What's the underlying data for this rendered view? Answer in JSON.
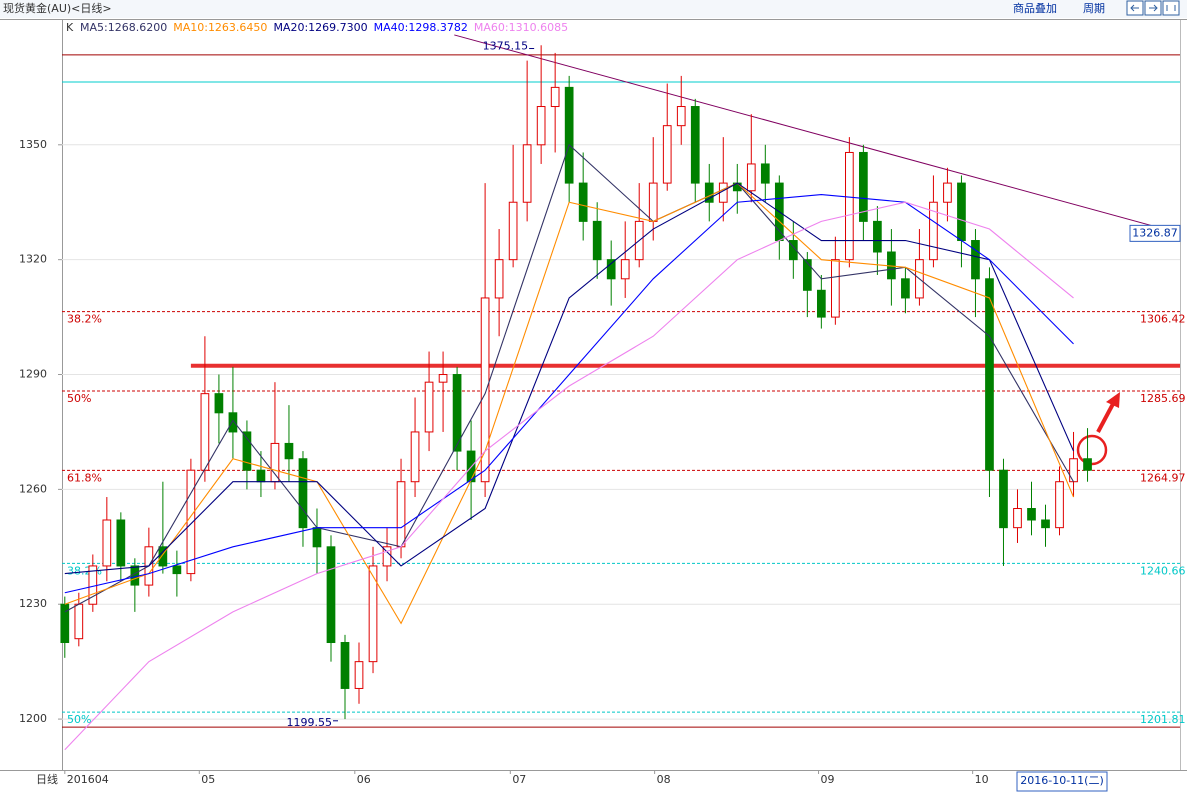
{
  "chart_data": {
    "type": "candlestick",
    "header_title": "现货黄金(AU)<日线>",
    "menu": [
      "商品叠加",
      "周期"
    ],
    "k_label": "K",
    "period_label": "日线",
    "current_date": "2016-10-11(二)",
    "up_color": "#e00000",
    "down_color": "#008000",
    "ylim": [
      1186.7,
      1382.6
    ],
    "yticks": [
      1200,
      1230,
      1260,
      1290,
      1320,
      1350
    ],
    "xlim": [
      -0.2,
      79.6
    ],
    "xticks": [
      {
        "value": 0,
        "label": "201604"
      },
      {
        "value": 9.6,
        "label": "05"
      },
      {
        "value": 20.7,
        "label": "06"
      },
      {
        "value": 31.8,
        "label": "07"
      },
      {
        "value": 42.1,
        "label": "08"
      },
      {
        "value": 53.8,
        "label": "09"
      },
      {
        "value": 64.8,
        "label": "10"
      }
    ],
    "grid": true,
    "candles": [
      [
        1230,
        1232,
        1216,
        1220
      ],
      [
        1221,
        1233,
        1219,
        1230
      ],
      [
        1230,
        1243,
        1228,
        1240
      ],
      [
        1240,
        1258,
        1236,
        1252
      ],
      [
        1252,
        1254,
        1236,
        1240
      ],
      [
        1240,
        1242,
        1228,
        1235
      ],
      [
        1235,
        1250,
        1232,
        1245
      ],
      [
        1245,
        1262,
        1238,
        1240
      ],
      [
        1240,
        1244,
        1232,
        1238
      ],
      [
        1238,
        1268,
        1236,
        1265
      ],
      [
        1265,
        1300,
        1262,
        1285
      ],
      [
        1285,
        1290,
        1272,
        1280
      ],
      [
        1280,
        1292,
        1268,
        1275
      ],
      [
        1275,
        1278,
        1260,
        1265
      ],
      [
        1265,
        1270,
        1258,
        1262
      ],
      [
        1262,
        1288,
        1260,
        1272
      ],
      [
        1272,
        1282,
        1262,
        1268
      ],
      [
        1268,
        1270,
        1245,
        1250
      ],
      [
        1250,
        1255,
        1238,
        1245
      ],
      [
        1245,
        1248,
        1215,
        1220
      ],
      [
        1220,
        1222,
        1200,
        1208
      ],
      [
        1208,
        1220,
        1204,
        1215
      ],
      [
        1215,
        1245,
        1212,
        1240
      ],
      [
        1240,
        1250,
        1236,
        1245
      ],
      [
        1245,
        1268,
        1242,
        1262
      ],
      [
        1262,
        1284,
        1258,
        1275
      ],
      [
        1275,
        1296,
        1270,
        1288
      ],
      [
        1288,
        1296,
        1275,
        1290
      ],
      [
        1290,
        1292,
        1265,
        1270
      ],
      [
        1270,
        1278,
        1252,
        1262
      ],
      [
        1262,
        1340,
        1258,
        1310
      ],
      [
        1310,
        1328,
        1300,
        1320
      ],
      [
        1320,
        1350,
        1318,
        1335
      ],
      [
        1335,
        1372,
        1330,
        1350
      ],
      [
        1350,
        1376,
        1345,
        1360
      ],
      [
        1360,
        1374,
        1348,
        1365
      ],
      [
        1365,
        1368,
        1335,
        1340
      ],
      [
        1340,
        1348,
        1325,
        1330
      ],
      [
        1330,
        1335,
        1315,
        1320
      ],
      [
        1320,
        1325,
        1308,
        1315
      ],
      [
        1315,
        1330,
        1310,
        1320
      ],
      [
        1320,
        1340,
        1318,
        1330
      ],
      [
        1330,
        1352,
        1325,
        1340
      ],
      [
        1340,
        1366,
        1338,
        1355
      ],
      [
        1355,
        1368,
        1350,
        1360
      ],
      [
        1360,
        1362,
        1335,
        1340
      ],
      [
        1340,
        1345,
        1330,
        1335
      ],
      [
        1335,
        1352,
        1330,
        1340
      ],
      [
        1340,
        1345,
        1332,
        1338
      ],
      [
        1338,
        1358,
        1335,
        1345
      ],
      [
        1345,
        1350,
        1335,
        1340
      ],
      [
        1340,
        1342,
        1320,
        1325
      ],
      [
        1325,
        1330,
        1315,
        1320
      ],
      [
        1320,
        1322,
        1305,
        1312
      ],
      [
        1312,
        1316,
        1302,
        1305
      ],
      [
        1305,
        1326,
        1303,
        1320
      ],
      [
        1320,
        1352,
        1318,
        1348
      ],
      [
        1348,
        1350,
        1325,
        1330
      ],
      [
        1330,
        1334,
        1316,
        1322
      ],
      [
        1322,
        1328,
        1308,
        1315
      ],
      [
        1315,
        1318,
        1306,
        1310
      ],
      [
        1310,
        1328,
        1308,
        1320
      ],
      [
        1320,
        1342,
        1318,
        1335
      ],
      [
        1335,
        1344,
        1330,
        1340
      ],
      [
        1340,
        1342,
        1318,
        1325
      ],
      [
        1325,
        1328,
        1305,
        1315
      ],
      [
        1315,
        1318,
        1258,
        1265
      ],
      [
        1265,
        1268,
        1240,
        1250
      ],
      [
        1250,
        1260,
        1246,
        1255
      ],
      [
        1255,
        1262,
        1248,
        1252
      ],
      [
        1252,
        1256,
        1245,
        1250
      ],
      [
        1250,
        1266,
        1248,
        1262
      ],
      [
        1262,
        1275,
        1258,
        1268
      ],
      [
        1268,
        1276,
        1262,
        1265
      ]
    ],
    "lines": [
      {
        "name": "MA5:1268.6200",
        "color": "#333366",
        "x": [
          0,
          6,
          12,
          18,
          24,
          30,
          36,
          42,
          48,
          54,
          60,
          66,
          72
        ],
        "values": [
          1228,
          1240,
          1278,
          1250,
          1245,
          1285,
          1350,
          1330,
          1340,
          1315,
          1318,
          1300,
          1262
        ]
      },
      {
        "name": "MA10:1263.6450",
        "color": "#ff8c00",
        "x": [
          0,
          6,
          12,
          18,
          24,
          30,
          36,
          42,
          48,
          54,
          60,
          66,
          72
        ],
        "values": [
          1230,
          1238,
          1268,
          1262,
          1225,
          1270,
          1335,
          1330,
          1340,
          1320,
          1318,
          1310,
          1258
        ]
      },
      {
        "name": "MA20:1269.7300",
        "color": "#000080",
        "x": [
          0,
          6,
          12,
          18,
          24,
          30,
          36,
          42,
          48,
          54,
          60,
          66,
          72
        ],
        "values": [
          1238,
          1240,
          1262,
          1262,
          1240,
          1255,
          1310,
          1328,
          1340,
          1325,
          1325,
          1320,
          1270
        ]
      },
      {
        "name": "MA40:1298.3782",
        "color": "#0000ff",
        "x": [
          0,
          6,
          12,
          18,
          24,
          30,
          36,
          42,
          48,
          54,
          60,
          66,
          72
        ],
        "values": [
          1233,
          1238,
          1245,
          1250,
          1250,
          1265,
          1290,
          1315,
          1335,
          1337,
          1335,
          1320,
          1298
        ]
      },
      {
        "name": "MA60:1310.6085",
        "color": "#ee82ee",
        "x": [
          0,
          6,
          12,
          18,
          24,
          30,
          36,
          42,
          48,
          54,
          60,
          66,
          72
        ],
        "values": [
          1192,
          1215,
          1228,
          1238,
          1245,
          1270,
          1287,
          1300,
          1320,
          1330,
          1335,
          1328,
          1310
        ]
      }
    ],
    "levels": [
      {
        "value": 1373.5,
        "color": "#a00000",
        "width": 1
      },
      {
        "value": 1366.4,
        "color": "#00cccc",
        "width": 1
      },
      {
        "value": 1292.3,
        "color": "#e83030",
        "width": 4
      },
      {
        "value": 1197.9,
        "color": "#a00000",
        "width": 1
      }
    ],
    "fib_levels": [
      {
        "value": 1306.42,
        "label": "38.2%",
        "color": "#cc0000"
      },
      {
        "value": 1285.69,
        "label": "50%",
        "color": "#cc0000"
      },
      {
        "value": 1264.97,
        "label": "61.8%",
        "color": "#cc0000"
      },
      {
        "value": 1240.66,
        "label": "38.2%",
        "color": "#00c8c8"
      },
      {
        "value": 1201.81,
        "label": "50%",
        "color": "#00c8c8"
      }
    ],
    "trendline": {
      "color": "#800060",
      "x": [
        27.8,
        79.6
      ],
      "values": [
        1378.7,
        1326.87
      ]
    },
    "extremes": [
      {
        "x": 33.5,
        "value": 1375.15
      },
      {
        "x": 19.5,
        "value": 1199.55
      }
    ]
  }
}
